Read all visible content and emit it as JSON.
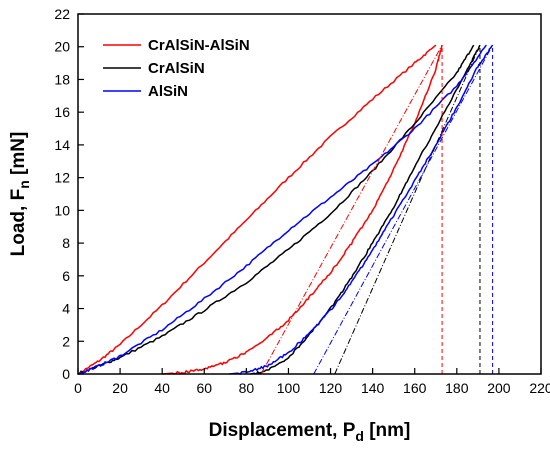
{
  "chart_data": {
    "type": "line",
    "title": "",
    "xlabel": {
      "main": "Displacement,  P",
      "sub": "d",
      "unit": "  [nm]"
    },
    "ylabel": {
      "main": "Load,  F",
      "sub": "n",
      "unit": "  [mN]"
    },
    "xlim": [
      0,
      220
    ],
    "ylim": [
      0,
      22
    ],
    "xticks": [
      0,
      20,
      40,
      60,
      80,
      100,
      120,
      140,
      160,
      180,
      200,
      220
    ],
    "yticks": [
      0,
      2,
      4,
      6,
      8,
      10,
      12,
      14,
      16,
      18,
      20,
      22
    ],
    "grid": false,
    "legend_position": "top-left",
    "series": [
      {
        "name": "CrAlSiN-AlSiN",
        "color": "#ff0000",
        "loading": [
          [
            0,
            0
          ],
          [
            10,
            0.8
          ],
          [
            20,
            1.8
          ],
          [
            40,
            4.2
          ],
          [
            60,
            6.8
          ],
          [
            80,
            9.4
          ],
          [
            100,
            12.0
          ],
          [
            120,
            14.5
          ],
          [
            140,
            16.8
          ],
          [
            160,
            19.0
          ],
          [
            170,
            20.1
          ]
        ],
        "unloading": [
          [
            173,
            20.1
          ],
          [
            170,
            18.6
          ],
          [
            160,
            15.3
          ],
          [
            150,
            12.5
          ],
          [
            140,
            10.0
          ],
          [
            130,
            8.0
          ],
          [
            120,
            6.2
          ],
          [
            110,
            4.7
          ],
          [
            100,
            3.3
          ],
          [
            90,
            2.2
          ],
          [
            80,
            1.3
          ],
          [
            70,
            0.7
          ],
          [
            60,
            0.3
          ],
          [
            50,
            0.1
          ],
          [
            40,
            0
          ]
        ],
        "tangent": [
          [
            87,
            0
          ],
          [
            173,
            20.1
          ]
        ],
        "final_depth": 173
      },
      {
        "name": "CrAlSiN",
        "color": "#000000",
        "loading": [
          [
            0,
            0
          ],
          [
            10,
            0.5
          ],
          [
            20,
            1.0
          ],
          [
            40,
            2.3
          ],
          [
            60,
            3.9
          ],
          [
            80,
            5.6
          ],
          [
            100,
            7.6
          ],
          [
            120,
            9.8
          ],
          [
            140,
            12.4
          ],
          [
            160,
            15.3
          ],
          [
            180,
            18.4
          ],
          [
            188,
            20.1
          ]
        ],
        "unloading": [
          [
            191,
            20.1
          ],
          [
            185,
            18.6
          ],
          [
            170,
            15.0
          ],
          [
            160,
            12.7
          ],
          [
            150,
            10.2
          ],
          [
            140,
            8.0
          ],
          [
            130,
            5.9
          ],
          [
            120,
            4.0
          ],
          [
            110,
            2.4
          ],
          [
            100,
            1.0
          ],
          [
            90,
            0.2
          ],
          [
            82,
            0
          ]
        ],
        "tangent": [
          [
            122,
            0
          ],
          [
            191,
            20.1
          ]
        ],
        "final_depth": 191
      },
      {
        "name": "AlSiN",
        "color": "#0000ff",
        "loading": [
          [
            0,
            0
          ],
          [
            10,
            0.5
          ],
          [
            20,
            1.1
          ],
          [
            40,
            2.7
          ],
          [
            60,
            4.6
          ],
          [
            80,
            6.6
          ],
          [
            100,
            8.8
          ],
          [
            120,
            10.8
          ],
          [
            140,
            12.8
          ],
          [
            160,
            15.0
          ],
          [
            180,
            17.6
          ],
          [
            194,
            20.1
          ]
        ],
        "unloading": [
          [
            197,
            20.1
          ],
          [
            190,
            18.8
          ],
          [
            180,
            16.3
          ],
          [
            170,
            14.0
          ],
          [
            160,
            11.8
          ],
          [
            150,
            9.7
          ],
          [
            140,
            7.6
          ],
          [
            130,
            5.6
          ],
          [
            120,
            3.9
          ],
          [
            110,
            2.5
          ],
          [
            100,
            1.3
          ],
          [
            90,
            0.5
          ],
          [
            80,
            0.1
          ],
          [
            72,
            0
          ]
        ],
        "tangent": [
          [
            112,
            0
          ],
          [
            197,
            20.1
          ]
        ],
        "final_depth": 197
      }
    ]
  }
}
